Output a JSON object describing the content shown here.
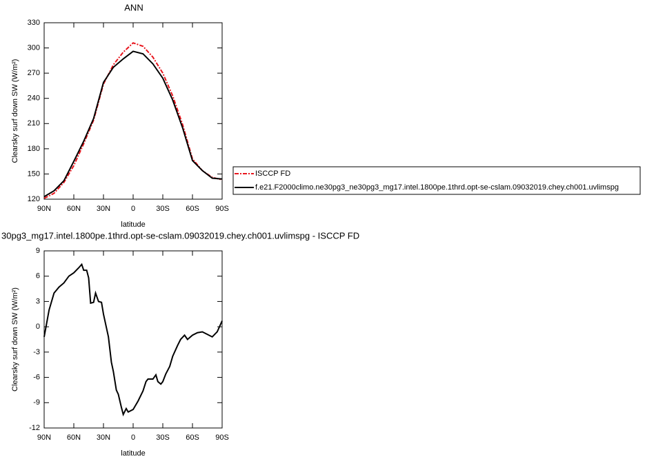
{
  "chart_data": [
    {
      "type": "line",
      "title": "ANN",
      "x_label": "latitude",
      "y_label": "Clearsky surf down SW (W/m²)",
      "x": [
        90,
        80,
        70,
        60,
        50,
        40,
        30,
        20,
        10,
        0,
        -10,
        -20,
        -30,
        -40,
        -50,
        -60,
        -70,
        -80,
        -90
      ],
      "xlim": [
        90,
        -90
      ],
      "xticks": [
        {
          "value": 90,
          "label": "90N"
        },
        {
          "value": 60,
          "label": "60N"
        },
        {
          "value": 30,
          "label": "30N"
        },
        0,
        {
          "value": -30,
          "label": "30S"
        },
        {
          "value": -60,
          "label": "60S"
        },
        {
          "value": -90,
          "label": "90S"
        }
      ],
      "ylim": [
        120,
        330
      ],
      "yticks": [
        120,
        150,
        180,
        210,
        240,
        270,
        300,
        330
      ],
      "legend": "right",
      "series": [
        {
          "name": "ISCCP FD",
          "color": "#e8141c",
          "line_style": "dashed",
          "values": [
            121,
            127,
            140,
            160,
            186,
            214,
            257,
            280,
            295,
            306,
            302,
            289,
            270,
            243,
            209,
            168,
            154,
            146,
            143
          ]
        },
        {
          "name": "f.e21.F2000climo.ne30pg3_ne30pg3_mg17.intel.1800pe.1thrd.opt-se-cslam.09032019.chey.ch001.uvlimspg",
          "color": "#000000",
          "line_style": "solid",
          "values": [
            123,
            130,
            142,
            165,
            189,
            216,
            259,
            277,
            287,
            296,
            293,
            281,
            264,
            238,
            205,
            166,
            154,
            145,
            144
          ]
        }
      ]
    },
    {
      "type": "line",
      "title": "30pg3_mg17.intel.1800pe.1thrd.opt-se-cslam.09032019.chey.ch001.uvlimspg - ISCCP FD",
      "x_label": "latitude",
      "y_label": "Clearsky surf down SW (W/m²)",
      "x": [
        90,
        85,
        80,
        75,
        70,
        65,
        60,
        55,
        52,
        50,
        47,
        45,
        43,
        40,
        38,
        35,
        32,
        30,
        25,
        22,
        20,
        17,
        15,
        12,
        10,
        7,
        5,
        0,
        -5,
        -10,
        -13,
        -15,
        -20,
        -23,
        -25,
        -28,
        -30,
        -33,
        -37,
        -40,
        -45,
        -48,
        -52,
        -55,
        -60,
        -65,
        -70,
        -75,
        -80,
        -85,
        -90
      ],
      "xlim": [
        90,
        -90
      ],
      "xticks": [
        {
          "value": 90,
          "label": "90N"
        },
        {
          "value": 60,
          "label": "60N"
        },
        {
          "value": 30,
          "label": "30N"
        },
        0,
        {
          "value": -30,
          "label": "30S"
        },
        {
          "value": -60,
          "label": "60S"
        },
        {
          "value": -90,
          "label": "90S"
        }
      ],
      "ylim": [
        -12,
        9
      ],
      "yticks": [
        -12,
        -9,
        -6,
        -3,
        0,
        3,
        6,
        9
      ],
      "series": [
        {
          "color": "#000000",
          "line_style": "solid",
          "values": [
            -1.2,
            2.0,
            4.0,
            4.7,
            5.2,
            6.0,
            6.4,
            7.0,
            7.4,
            6.7,
            6.7,
            5.8,
            2.8,
            2.9,
            4.0,
            3.0,
            2.9,
            1.5,
            -1.2,
            -4.2,
            -5.3,
            -7.5,
            -8.0,
            -9.5,
            -10.4,
            -9.7,
            -10.1,
            -9.8,
            -8.8,
            -7.6,
            -6.5,
            -6.2,
            -6.2,
            -5.7,
            -6.5,
            -6.8,
            -6.5,
            -5.6,
            -4.7,
            -3.5,
            -2.2,
            -1.5,
            -1.0,
            -1.5,
            -1.0,
            -0.7,
            -0.6,
            -0.9,
            -1.2,
            -0.6,
            0.7
          ]
        }
      ]
    }
  ]
}
